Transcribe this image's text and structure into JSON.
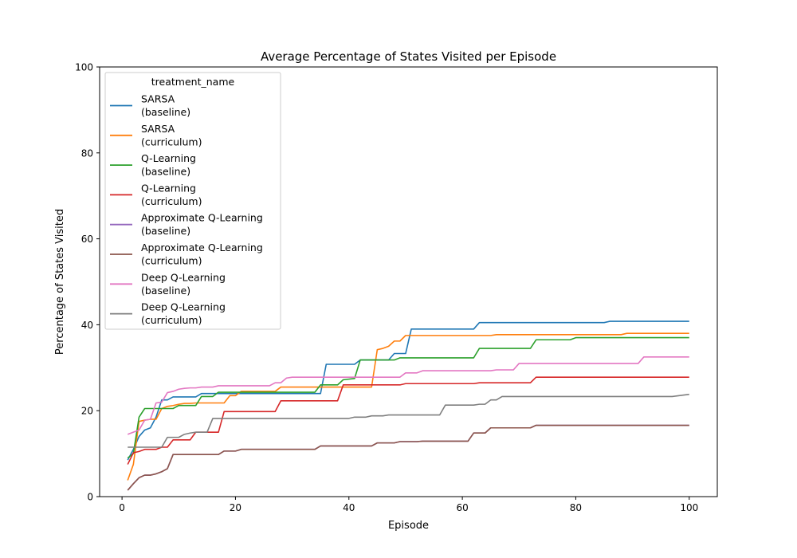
{
  "chart_data": {
    "type": "line",
    "title": "Average Percentage of States Visited per Episode",
    "xlabel": "Episode",
    "ylabel": "Percentage of States Visited",
    "xlim": [
      -3.95,
      104.95
    ],
    "ylim": [
      0,
      100
    ],
    "xticks": [
      0,
      20,
      40,
      60,
      80,
      100
    ],
    "yticks": [
      0,
      20,
      40,
      60,
      80,
      100
    ],
    "grid": false,
    "legend": {
      "title": "treatment_name",
      "position": "top-left"
    },
    "series": [
      {
        "name": [
          "SARSA",
          "(baseline)"
        ],
        "color": "#1f77b4",
        "points": [
          [
            1,
            8.5
          ],
          [
            2,
            11
          ],
          [
            3,
            14
          ],
          [
            4,
            15.5
          ],
          [
            5,
            16
          ],
          [
            6,
            18.5
          ],
          [
            7,
            22.5
          ],
          [
            8,
            22.5
          ],
          [
            9,
            23.2
          ],
          [
            13,
            23.2
          ],
          [
            14,
            24
          ],
          [
            35,
            24
          ],
          [
            36,
            30.8
          ],
          [
            41,
            30.8
          ],
          [
            42,
            31.8
          ],
          [
            47,
            31.8
          ],
          [
            48,
            33.3
          ],
          [
            50,
            33.3
          ],
          [
            51,
            39
          ],
          [
            62,
            39
          ],
          [
            63,
            40.5
          ],
          [
            85,
            40.5
          ],
          [
            86,
            40.8
          ],
          [
            100,
            40.8
          ]
        ]
      },
      {
        "name": [
          "SARSA",
          "(curriculum)"
        ],
        "color": "#ff7f0e",
        "points": [
          [
            1,
            3.8
          ],
          [
            2,
            7.5
          ],
          [
            3,
            17.5
          ],
          [
            4,
            17.8
          ],
          [
            5,
            18
          ],
          [
            6,
            18
          ],
          [
            7,
            20.5
          ],
          [
            8,
            21
          ],
          [
            9,
            21.2
          ],
          [
            10,
            21.5
          ],
          [
            11,
            21.7
          ],
          [
            12,
            21.7
          ],
          [
            13,
            21.8
          ],
          [
            18,
            21.8
          ],
          [
            19,
            23.5
          ],
          [
            20,
            23.5
          ],
          [
            21,
            24.5
          ],
          [
            27,
            24.5
          ],
          [
            28,
            25.5
          ],
          [
            44,
            25.5
          ],
          [
            45,
            34.2
          ],
          [
            46,
            34.5
          ],
          [
            47,
            35
          ],
          [
            48,
            36.2
          ],
          [
            49,
            36.2
          ],
          [
            50,
            37.5
          ],
          [
            65,
            37.5
          ],
          [
            66,
            37.7
          ],
          [
            88,
            37.7
          ],
          [
            89,
            38
          ],
          [
            100,
            38
          ]
        ]
      },
      {
        "name": [
          "Q-Learning",
          "(baseline)"
        ],
        "color": "#2ca02c",
        "points": [
          [
            1,
            9
          ],
          [
            2,
            10
          ],
          [
            3,
            18.5
          ],
          [
            4,
            20.5
          ],
          [
            9,
            20.5
          ],
          [
            10,
            21.2
          ],
          [
            13,
            21.2
          ],
          [
            14,
            23.3
          ],
          [
            16,
            23.3
          ],
          [
            17,
            24.3
          ],
          [
            34,
            24.3
          ],
          [
            35,
            26
          ],
          [
            38,
            26
          ],
          [
            39,
            27.2
          ],
          [
            41,
            27.5
          ],
          [
            42,
            31.8
          ],
          [
            48,
            31.8
          ],
          [
            49,
            32.3
          ],
          [
            62,
            32.3
          ],
          [
            63,
            34.5
          ],
          [
            72,
            34.5
          ],
          [
            73,
            36.5
          ],
          [
            79,
            36.5
          ],
          [
            80,
            37
          ],
          [
            100,
            37
          ]
        ]
      },
      {
        "name": [
          "Q-Learning",
          "(curriculum)"
        ],
        "color": "#d62728",
        "points": [
          [
            1,
            7.5
          ],
          [
            2,
            10.2
          ],
          [
            3,
            10.5
          ],
          [
            4,
            11
          ],
          [
            6,
            11
          ],
          [
            7,
            11.5
          ],
          [
            8,
            11.5
          ],
          [
            9,
            13.2
          ],
          [
            12,
            13.2
          ],
          [
            13,
            15
          ],
          [
            17,
            15
          ],
          [
            18,
            19.8
          ],
          [
            27,
            19.8
          ],
          [
            28,
            22.3
          ],
          [
            38,
            22.3
          ],
          [
            39,
            26
          ],
          [
            49,
            26
          ],
          [
            50,
            26.3
          ],
          [
            62,
            26.3
          ],
          [
            63,
            26.5
          ],
          [
            72,
            26.5
          ],
          [
            73,
            27.8
          ],
          [
            100,
            27.8
          ]
        ]
      },
      {
        "name": [
          "Approximate Q-Learning",
          "(baseline)"
        ],
        "color": "#9467bd",
        "points": [
          [
            1,
            1.5
          ],
          [
            2,
            3
          ],
          [
            3,
            4.4
          ],
          [
            4,
            5
          ],
          [
            5,
            5
          ],
          [
            6,
            5.3
          ],
          [
            7,
            5.8
          ],
          [
            8,
            6.5
          ],
          [
            9,
            9.8
          ],
          [
            17,
            9.8
          ],
          [
            18,
            10.6
          ],
          [
            20,
            10.6
          ],
          [
            21,
            11
          ],
          [
            34,
            11
          ],
          [
            35,
            11.8
          ],
          [
            44,
            11.8
          ],
          [
            45,
            12.5
          ],
          [
            48,
            12.5
          ],
          [
            49,
            12.8
          ],
          [
            52,
            12.8
          ],
          [
            53,
            12.9
          ],
          [
            61,
            12.9
          ],
          [
            62,
            14.8
          ],
          [
            64,
            14.8
          ],
          [
            65,
            16
          ],
          [
            72,
            16
          ],
          [
            73,
            16.6
          ],
          [
            100,
            16.6
          ]
        ]
      },
      {
        "name": [
          "Approximate Q-Learning",
          "(curriculum)"
        ],
        "color": "#8c564b",
        "points": [
          [
            1,
            1.5
          ],
          [
            2,
            3
          ],
          [
            3,
            4.4
          ],
          [
            4,
            5
          ],
          [
            5,
            5
          ],
          [
            6,
            5.3
          ],
          [
            7,
            5.8
          ],
          [
            8,
            6.5
          ],
          [
            9,
            9.8
          ],
          [
            17,
            9.8
          ],
          [
            18,
            10.6
          ],
          [
            20,
            10.6
          ],
          [
            21,
            11
          ],
          [
            34,
            11
          ],
          [
            35,
            11.8
          ],
          [
            44,
            11.8
          ],
          [
            45,
            12.5
          ],
          [
            48,
            12.5
          ],
          [
            49,
            12.8
          ],
          [
            52,
            12.8
          ],
          [
            53,
            12.9
          ],
          [
            61,
            12.9
          ],
          [
            62,
            14.8
          ],
          [
            64,
            14.8
          ],
          [
            65,
            16
          ],
          [
            72,
            16
          ],
          [
            73,
            16.6
          ],
          [
            100,
            16.6
          ]
        ]
      },
      {
        "name": [
          "Deep Q-Learning",
          "(baseline)"
        ],
        "color": "#e377c2",
        "points": [
          [
            1,
            14.5
          ],
          [
            2,
            15
          ],
          [
            3,
            15.5
          ],
          [
            4,
            17.8
          ],
          [
            5,
            18
          ],
          [
            6,
            21.8
          ],
          [
            7,
            22
          ],
          [
            8,
            24.2
          ],
          [
            9,
            24.5
          ],
          [
            10,
            25
          ],
          [
            11,
            25.2
          ],
          [
            12,
            25.3
          ],
          [
            13,
            25.3
          ],
          [
            14,
            25.5
          ],
          [
            16,
            25.5
          ],
          [
            17,
            25.8
          ],
          [
            26,
            25.8
          ],
          [
            27,
            26.5
          ],
          [
            28,
            26.5
          ],
          [
            29,
            27.6
          ],
          [
            30,
            27.8
          ],
          [
            49,
            27.8
          ],
          [
            50,
            28.8
          ],
          [
            52,
            28.8
          ],
          [
            53,
            29.3
          ],
          [
            65,
            29.3
          ],
          [
            66,
            29.5
          ],
          [
            69,
            29.5
          ],
          [
            70,
            31
          ],
          [
            91,
            31
          ],
          [
            92,
            32.5
          ],
          [
            100,
            32.5
          ]
        ]
      },
      {
        "name": [
          "Deep Q-Learning",
          "(curriculum)"
        ],
        "color": "#7f7f7f",
        "points": [
          [
            1,
            11.5
          ],
          [
            7,
            11.5
          ],
          [
            8,
            13.8
          ],
          [
            10,
            13.8
          ],
          [
            11,
            14.5
          ],
          [
            12,
            14.8
          ],
          [
            13,
            15
          ],
          [
            15,
            15
          ],
          [
            16,
            18.2
          ],
          [
            40,
            18.2
          ],
          [
            41,
            18.5
          ],
          [
            43,
            18.5
          ],
          [
            44,
            18.8
          ],
          [
            46,
            18.8
          ],
          [
            47,
            19
          ],
          [
            56,
            19
          ],
          [
            57,
            21.3
          ],
          [
            62,
            21.3
          ],
          [
            63,
            21.5
          ],
          [
            64,
            21.5
          ],
          [
            65,
            22.5
          ],
          [
            66,
            22.5
          ],
          [
            67,
            23.3
          ],
          [
            97,
            23.3
          ],
          [
            100,
            23.8
          ]
        ]
      }
    ]
  }
}
